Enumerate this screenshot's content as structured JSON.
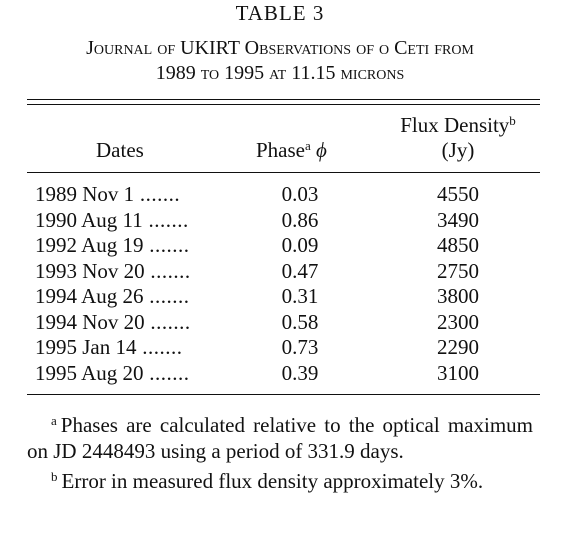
{
  "title": "TABLE 3",
  "caption": [
    "Journal of UKIRT Observations of o Ceti from",
    "1989 to 1995 at 11.15 microns"
  ],
  "table": {
    "headers": {
      "dates": "Dates",
      "phase": "Phase",
      "phase_note": "a",
      "phase_symbol": "ϕ",
      "flux": "Flux Density",
      "flux_note": "b",
      "flux_unit": "(Jy)"
    },
    "rows": [
      [
        "1989 Nov 1",
        0.03,
        4550
      ],
      [
        "1990 Aug 11",
        0.86,
        3490
      ],
      [
        "1992 Aug 19",
        0.09,
        4850
      ],
      [
        "1993 Nov 20",
        0.47,
        2750
      ],
      [
        "1994 Aug 26",
        0.31,
        3800
      ],
      [
        "1994 Nov 20",
        0.58,
        2300
      ],
      [
        "1995 Jan 14",
        0.73,
        2290
      ],
      [
        "1995 Aug 20",
        0.39,
        3100
      ]
    ]
  },
  "footnotes": [
    {
      "mark": "a",
      "text": "Phases are calculated relative to the optical maximum on JD 2448493 using a period of 331.9 days."
    },
    {
      "mark": "b",
      "text": "Error in measured flux density approximately 3%."
    }
  ]
}
